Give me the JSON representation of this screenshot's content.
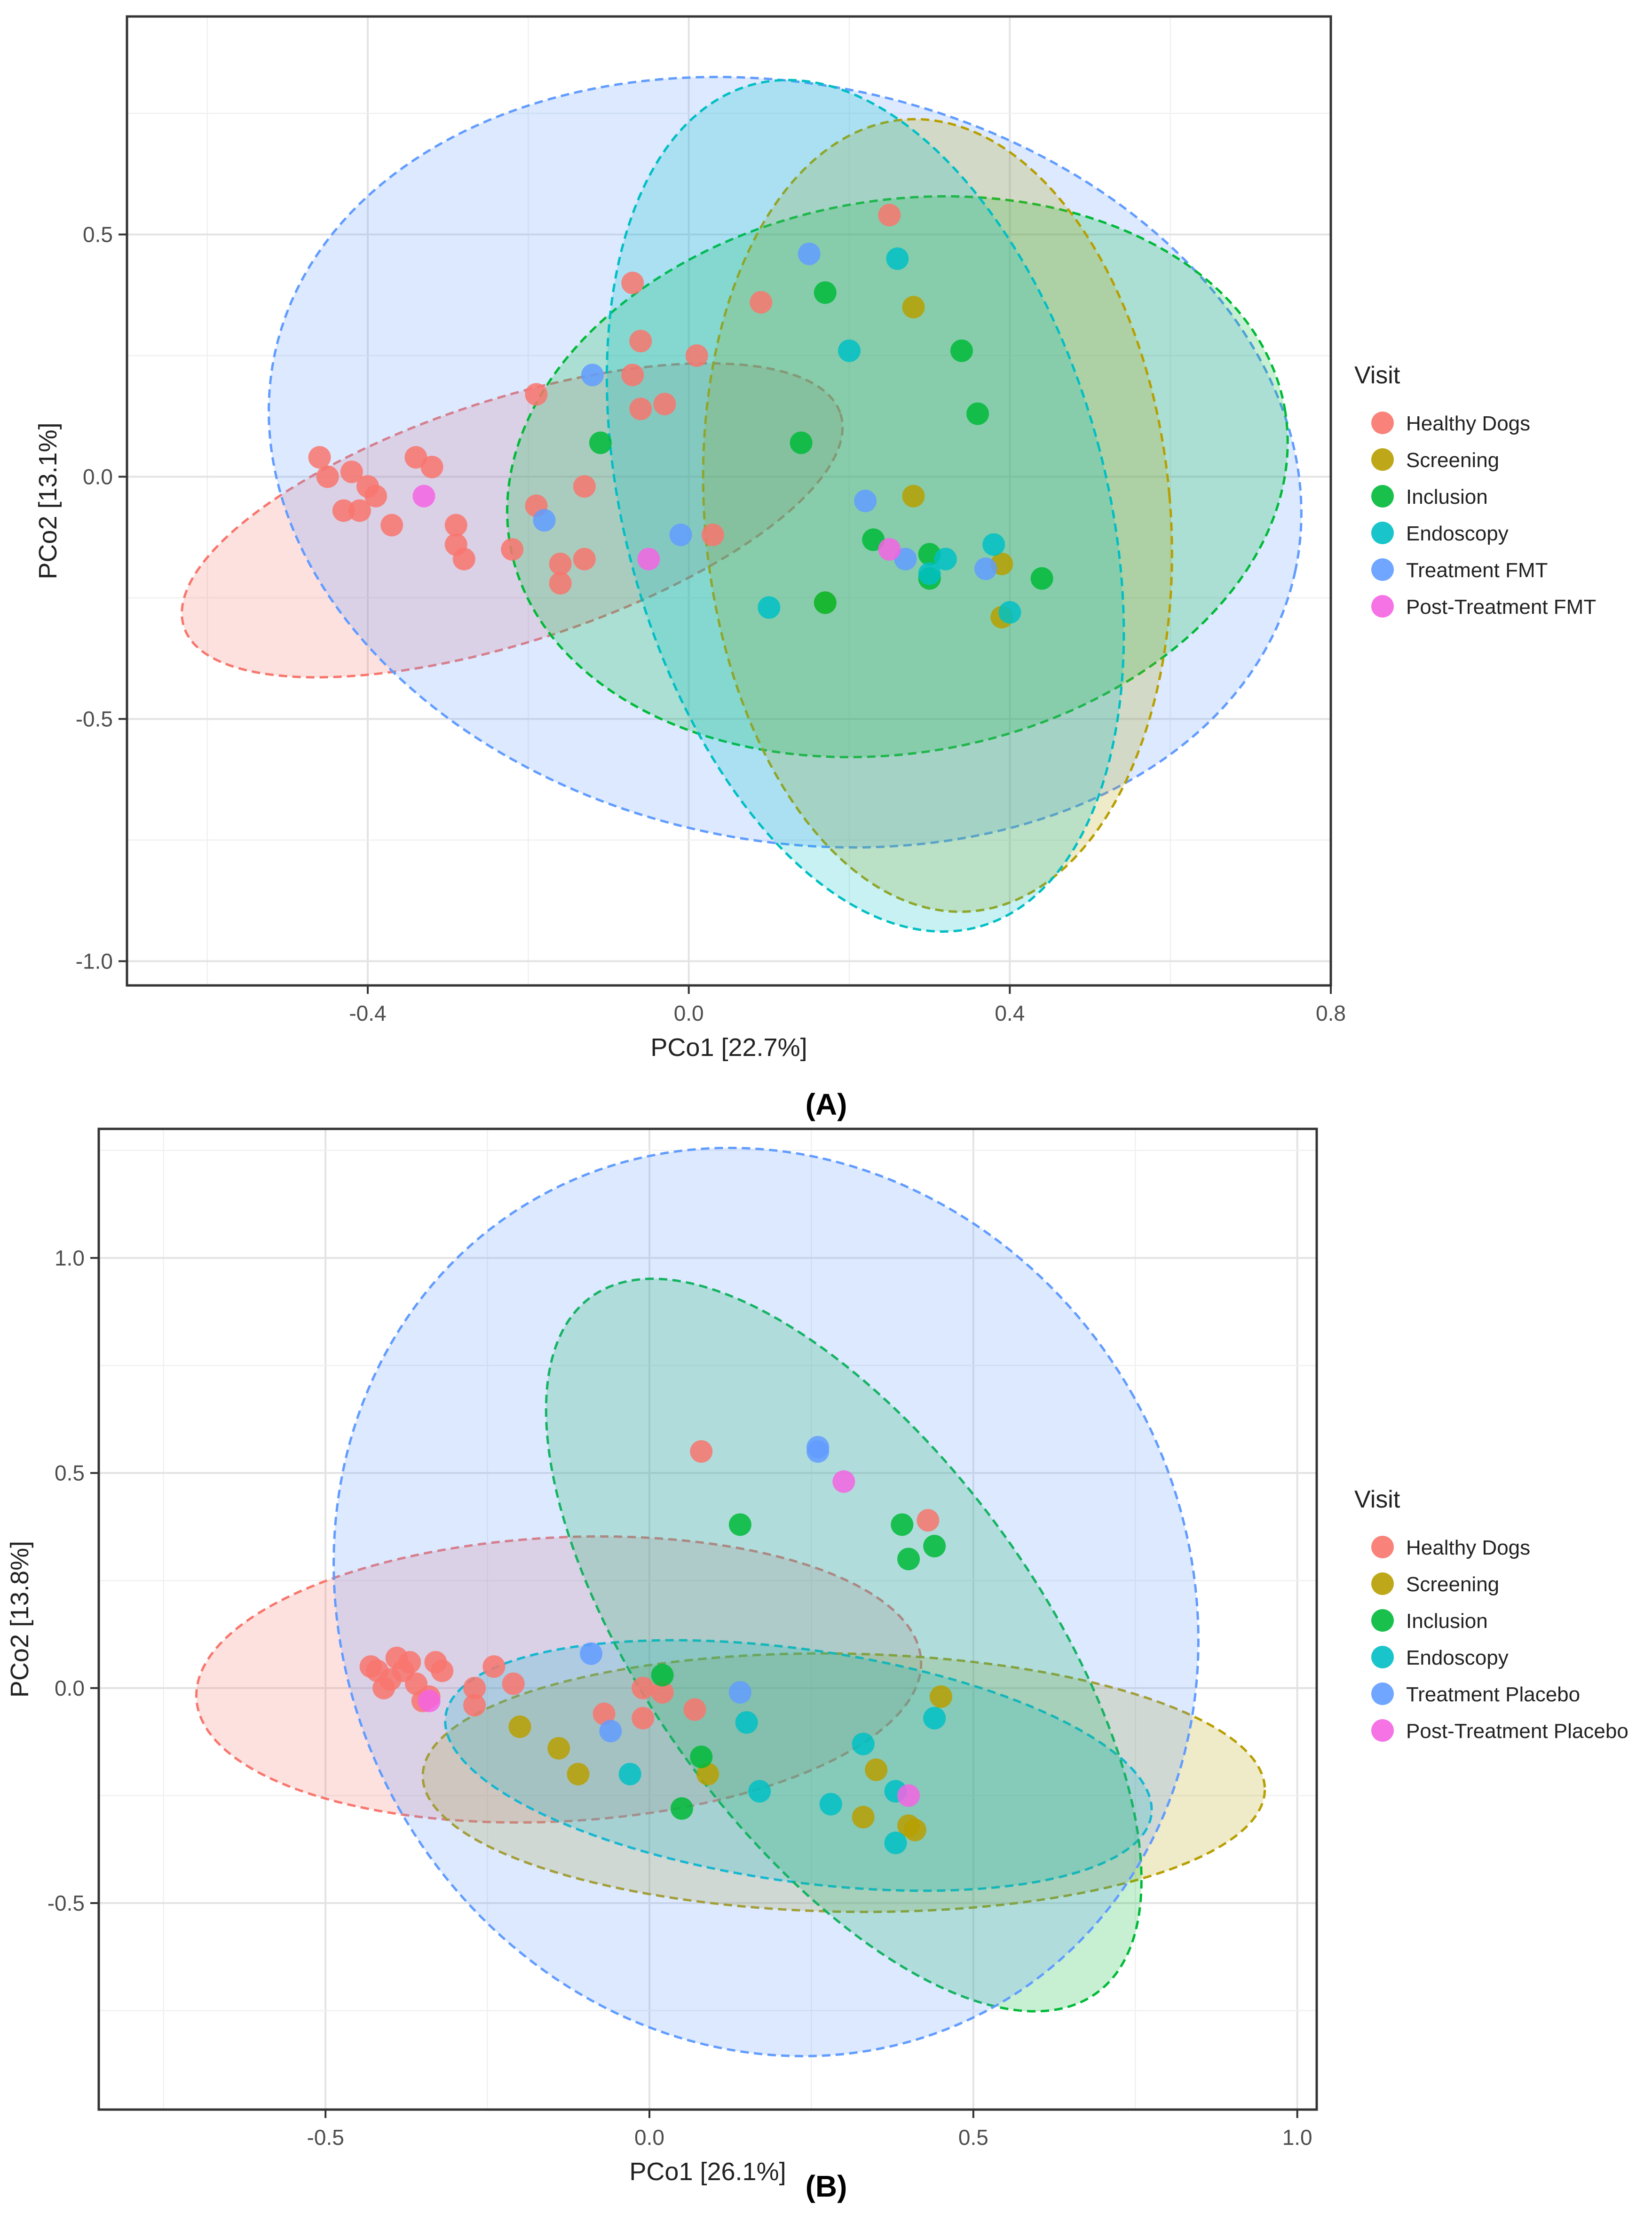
{
  "chart_data": [
    {
      "type": "scatter",
      "panel_label": "(A)",
      "xlabel": "PCo1 [22.7%]",
      "ylabel": "PCo2 [13.1%]",
      "xlim": [
        -0.7,
        0.8
      ],
      "ylim": [
        -1.05,
        0.95
      ],
      "xticks": [
        -0.4,
        0.0,
        0.4,
        0.8
      ],
      "xtick_labels": [
        "-0.4",
        "0.0",
        "0.4",
        "0.8"
      ],
      "yticks": [
        -1.0,
        -0.5,
        0.0,
        0.5
      ],
      "ytick_labels": [
        "-1.0",
        "-0.5",
        "0.0",
        "0.5"
      ],
      "grid": true,
      "legend_title": "Visit",
      "legend_position": "right",
      "series": [
        {
          "name": "Healthy Dogs",
          "color": "#F8766D",
          "points": [
            [
              -0.46,
              0.04
            ],
            [
              -0.45,
              0.0
            ],
            [
              -0.42,
              0.01
            ],
            [
              -0.41,
              -0.07
            ],
            [
              -0.43,
              -0.07
            ],
            [
              -0.4,
              -0.02
            ],
            [
              -0.39,
              -0.04
            ],
            [
              -0.37,
              -0.1
            ],
            [
              -0.34,
              0.04
            ],
            [
              -0.32,
              0.02
            ],
            [
              -0.29,
              -0.1
            ],
            [
              -0.29,
              -0.14
            ],
            [
              -0.28,
              -0.17
            ],
            [
              -0.22,
              -0.15
            ],
            [
              -0.19,
              -0.06
            ],
            [
              -0.19,
              0.17
            ],
            [
              -0.16,
              -0.18
            ],
            [
              -0.16,
              -0.22
            ],
            [
              -0.13,
              -0.02
            ],
            [
              -0.13,
              -0.17
            ],
            [
              -0.07,
              0.4
            ],
            [
              -0.07,
              0.21
            ],
            [
              -0.06,
              0.28
            ],
            [
              -0.06,
              0.14
            ],
            [
              -0.03,
              0.15
            ],
            [
              0.01,
              0.25
            ],
            [
              0.03,
              -0.12
            ],
            [
              0.09,
              0.36
            ],
            [
              0.25,
              0.54
            ]
          ]
        },
        {
          "name": "Screening",
          "color": "#B79F00",
          "points": [
            [
              0.28,
              0.35
            ],
            [
              0.28,
              -0.04
            ],
            [
              0.39,
              -0.18
            ],
            [
              0.39,
              -0.29
            ],
            [
              0.17,
              -0.26
            ]
          ]
        },
        {
          "name": "Inclusion",
          "color": "#00BA38",
          "points": [
            [
              -0.11,
              0.07
            ],
            [
              0.14,
              0.07
            ],
            [
              0.17,
              0.38
            ],
            [
              0.23,
              -0.13
            ],
            [
              0.3,
              -0.16
            ],
            [
              0.3,
              -0.21
            ],
            [
              0.34,
              0.26
            ],
            [
              0.36,
              0.13
            ],
            [
              0.44,
              -0.21
            ],
            [
              0.17,
              -0.26
            ]
          ]
        },
        {
          "name": "Endoscopy",
          "color": "#00BFC4",
          "points": [
            [
              0.1,
              -0.27
            ],
            [
              0.2,
              0.26
            ],
            [
              0.26,
              0.45
            ],
            [
              0.3,
              -0.2
            ],
            [
              0.32,
              -0.17
            ],
            [
              0.38,
              -0.14
            ],
            [
              0.4,
              -0.28
            ]
          ]
        },
        {
          "name": "Treatment FMT",
          "color": "#619CFF",
          "points": [
            [
              -0.12,
              0.21
            ],
            [
              -0.18,
              -0.09
            ],
            [
              -0.01,
              -0.12
            ],
            [
              0.22,
              -0.05
            ],
            [
              0.27,
              -0.17
            ],
            [
              0.15,
              0.46
            ],
            [
              0.37,
              -0.19
            ]
          ]
        },
        {
          "name": "Post-Treatment FMT",
          "color": "#F564E3",
          "points": [
            [
              -0.33,
              -0.04
            ],
            [
              -0.05,
              -0.17
            ],
            [
              0.25,
              -0.15
            ]
          ]
        }
      ],
      "ellipses": [
        {
          "series": "Healthy Dogs",
          "cx": -0.22,
          "cy": -0.09,
          "rx": 0.43,
          "ry": 0.25,
          "angle": 18
        },
        {
          "series": "Treatment FMT",
          "cx": 0.12,
          "cy": 0.03,
          "rx": 0.65,
          "ry": 0.78,
          "angle": -12
        },
        {
          "series": "Inclusion",
          "cx": 0.26,
          "cy": 0.0,
          "rx": 0.49,
          "ry": 0.57,
          "angle": 10
        },
        {
          "series": "Screening",
          "cx": 0.31,
          "cy": -0.08,
          "rx": 0.29,
          "ry": 0.82,
          "angle": 5
        },
        {
          "series": "Endoscopy",
          "cx": 0.22,
          "cy": -0.06,
          "rx": 0.3,
          "ry": 0.9,
          "angle": 15
        }
      ]
    },
    {
      "type": "scatter",
      "panel_label": "(B)",
      "xlabel": "PCo1 [26.1%]",
      "ylabel": "PCo2 [13.8%]",
      "xlim": [
        -0.85,
        1.03
      ],
      "ylim": [
        -0.98,
        1.3
      ],
      "xticks": [
        -0.5,
        0.0,
        0.5,
        1.0
      ],
      "xtick_labels": [
        "-0.5",
        "0.0",
        "0.5",
        "1.0"
      ],
      "yticks": [
        -0.5,
        0.0,
        0.5,
        1.0
      ],
      "ytick_labels": [
        "-0.5",
        "0.0",
        "0.5",
        "1.0"
      ],
      "grid": true,
      "legend_title": "Visit",
      "legend_position": "right",
      "series": [
        {
          "name": "Healthy Dogs",
          "color": "#F8766D",
          "points": [
            [
              -0.43,
              0.05
            ],
            [
              -0.42,
              0.04
            ],
            [
              -0.41,
              0.0
            ],
            [
              -0.4,
              0.02
            ],
            [
              -0.39,
              0.07
            ],
            [
              -0.38,
              0.04
            ],
            [
              -0.37,
              0.06
            ],
            [
              -0.36,
              0.01
            ],
            [
              -0.35,
              -0.03
            ],
            [
              -0.34,
              -0.02
            ],
            [
              -0.33,
              0.06
            ],
            [
              -0.32,
              0.04
            ],
            [
              -0.27,
              0.0
            ],
            [
              -0.27,
              -0.04
            ],
            [
              -0.24,
              0.05
            ],
            [
              -0.21,
              0.01
            ],
            [
              -0.07,
              -0.06
            ],
            [
              -0.01,
              -0.07
            ],
            [
              -0.01,
              0.0
            ],
            [
              0.02,
              -0.01
            ],
            [
              0.07,
              -0.05
            ],
            [
              0.08,
              0.55
            ],
            [
              0.43,
              0.39
            ]
          ]
        },
        {
          "name": "Screening",
          "color": "#B79F00",
          "points": [
            [
              -0.2,
              -0.09
            ],
            [
              -0.14,
              -0.14
            ],
            [
              -0.11,
              -0.2
            ],
            [
              0.09,
              -0.2
            ],
            [
              0.33,
              -0.3
            ],
            [
              0.35,
              -0.19
            ],
            [
              0.4,
              -0.32
            ],
            [
              0.41,
              -0.33
            ],
            [
              0.45,
              -0.02
            ]
          ]
        },
        {
          "name": "Inclusion",
          "color": "#00BA38",
          "points": [
            [
              0.02,
              0.03
            ],
            [
              0.05,
              -0.28
            ],
            [
              0.08,
              -0.16
            ],
            [
              0.14,
              0.38
            ],
            [
              0.39,
              0.38
            ],
            [
              0.4,
              0.3
            ],
            [
              0.44,
              0.33
            ]
          ]
        },
        {
          "name": "Endoscopy",
          "color": "#00BFC4",
          "points": [
            [
              -0.03,
              -0.2
            ],
            [
              0.15,
              -0.08
            ],
            [
              0.17,
              -0.24
            ],
            [
              0.28,
              -0.27
            ],
            [
              0.33,
              -0.13
            ],
            [
              0.38,
              -0.24
            ],
            [
              0.38,
              -0.36
            ],
            [
              0.44,
              -0.07
            ]
          ]
        },
        {
          "name": "Treatment Placebo",
          "color": "#619CFF",
          "points": [
            [
              -0.09,
              0.08
            ],
            [
              -0.06,
              -0.1
            ],
            [
              0.14,
              -0.01
            ],
            [
              0.26,
              0.56
            ],
            [
              0.26,
              0.55
            ]
          ]
        },
        {
          "name": "Post-Treatment Placebo",
          "color": "#F564E3",
          "points": [
            [
              -0.34,
              -0.03
            ],
            [
              0.3,
              0.48
            ],
            [
              0.4,
              -0.25
            ]
          ]
        }
      ],
      "ellipses": [
        {
          "series": "Healthy Dogs",
          "cx": -0.14,
          "cy": 0.02,
          "rx": 0.56,
          "ry": 0.33,
          "angle": 3
        },
        {
          "series": "Screening",
          "cx": 0.3,
          "cy": -0.22,
          "rx": 0.65,
          "ry": 0.3,
          "angle": -1
        },
        {
          "series": "Endoscopy",
          "cx": 0.23,
          "cy": -0.18,
          "rx": 0.55,
          "ry": 0.27,
          "angle": -8
        },
        {
          "series": "Inclusion",
          "cx": 0.3,
          "cy": 0.1,
          "rx": 0.3,
          "ry": 1.0,
          "angle": 36
        },
        {
          "series": "Treatment Placebo",
          "cx": 0.18,
          "cy": 0.2,
          "rx": 0.65,
          "ry": 1.08,
          "angle": 30
        }
      ]
    }
  ]
}
